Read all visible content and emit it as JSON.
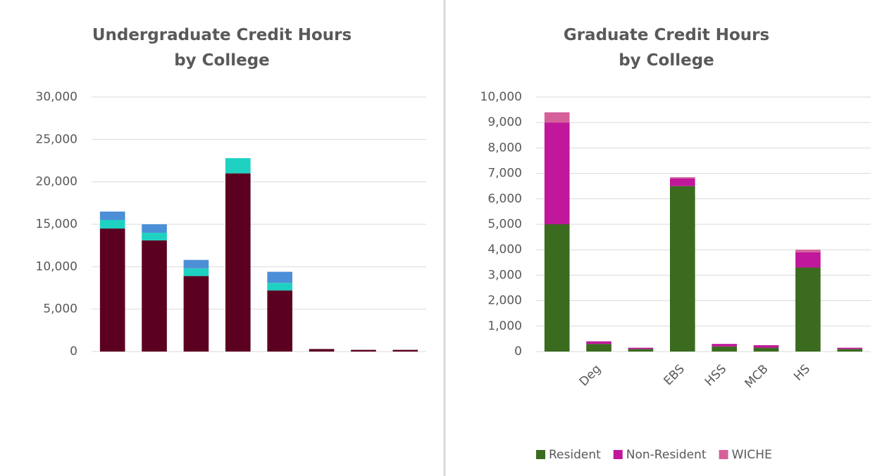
{
  "chart_data": [
    {
      "type": "bar",
      "stacked": true,
      "title": "Undergraduate Credit Hours\nby College",
      "categories": [
        null,
        null,
        null,
        null,
        null,
        null,
        null,
        null
      ],
      "series": [
        {
          "color": "#5c0021",
          "values": [
            14500,
            13100,
            8900,
            21000,
            7200,
            300,
            200,
            200
          ]
        },
        {
          "color": "#1fd1c1",
          "values": [
            1000,
            900,
            900,
            1800,
            900,
            0,
            0,
            0
          ]
        },
        {
          "color": "#4b8fd6",
          "values": [
            1000,
            1000,
            1000,
            0,
            1300,
            0,
            0,
            0
          ]
        }
      ],
      "ylim": [
        0,
        30000
      ],
      "yticks": [
        {
          "value": 0,
          "label": "0"
        },
        {
          "value": 5000,
          "label": "5,000"
        },
        {
          "value": 10000,
          "label": "10,000"
        },
        {
          "value": 15000,
          "label": "15,000"
        },
        {
          "value": 20000,
          "label": "20,000"
        },
        {
          "value": 25000,
          "label": "25,000"
        },
        {
          "value": 30000,
          "label": "30,000"
        }
      ],
      "grid": true
    },
    {
      "type": "bar",
      "stacked": true,
      "title": "Graduate Credit Hours\nby College",
      "categories": [
        null,
        "Deg",
        null,
        "EBS",
        "HSS",
        "MCB",
        "HS",
        null
      ],
      "series": [
        {
          "name": "Resident",
          "color": "#3a6b1f",
          "values": [
            5000,
            300,
            100,
            6500,
            200,
            150,
            3300,
            100
          ]
        },
        {
          "name": "Non-Resident",
          "color": "#c0179b",
          "values": [
            4000,
            100,
            50,
            300,
            100,
            100,
            600,
            50
          ]
        },
        {
          "name": "WICHE",
          "color": "#d6609a",
          "values": [
            400,
            0,
            0,
            50,
            0,
            0,
            100,
            0
          ]
        }
      ],
      "ylim": [
        0,
        10000
      ],
      "yticks": [
        {
          "value": 0,
          "label": "0"
        },
        {
          "value": 1000,
          "label": "1,000"
        },
        {
          "value": 2000,
          "label": "2,000"
        },
        {
          "value": 3000,
          "label": "3,000"
        },
        {
          "value": 4000,
          "label": "4,000"
        },
        {
          "value": 5000,
          "label": "5,000"
        },
        {
          "value": 6000,
          "label": "6,000"
        },
        {
          "value": 7000,
          "label": "7,000"
        },
        {
          "value": 8000,
          "label": "8,000"
        },
        {
          "value": 9000,
          "label": "9,000"
        },
        {
          "value": 10000,
          "label": "10,000"
        }
      ],
      "grid": true
    }
  ]
}
